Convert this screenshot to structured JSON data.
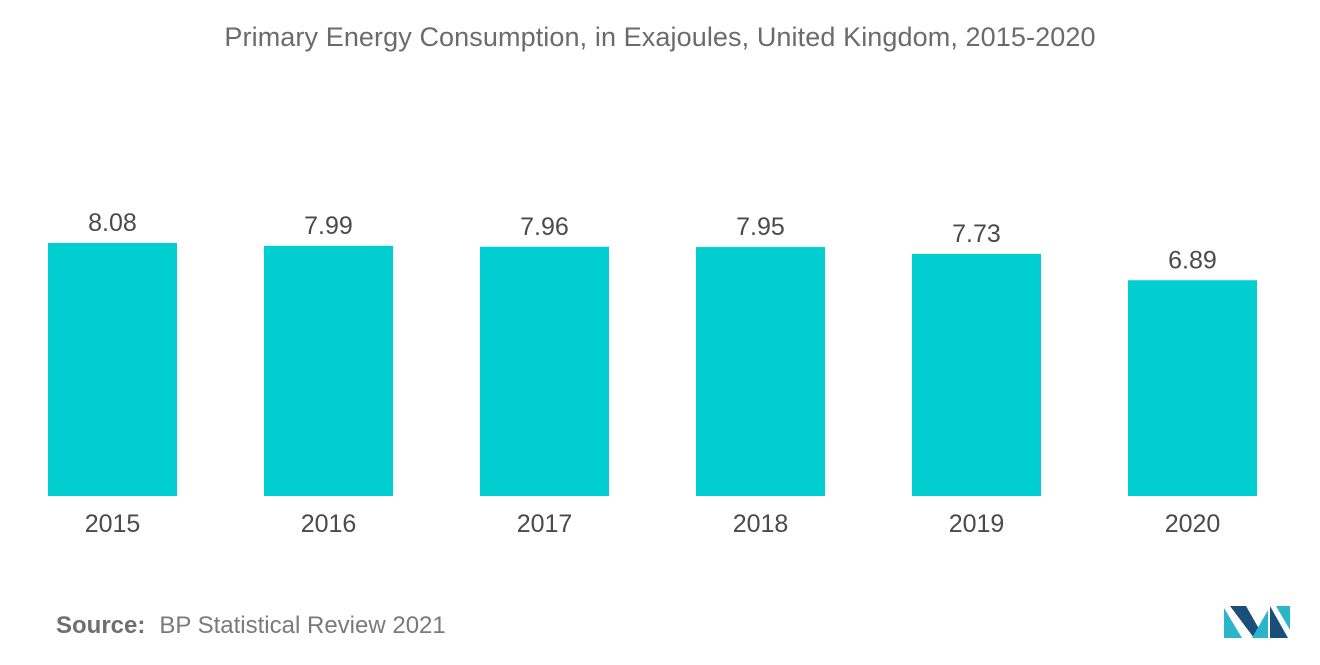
{
  "chart_data": {
    "type": "bar",
    "title": "Primary Energy Consumption, in Exajoules, United Kingdom, 2015-2020",
    "categories": [
      "2015",
      "2016",
      "2017",
      "2018",
      "2019",
      "2020"
    ],
    "values": [
      8.08,
      7.99,
      7.96,
      7.95,
      7.73,
      6.89
    ],
    "value_labels": [
      "8.08",
      "7.99",
      "7.96",
      "7.95",
      "7.73",
      "6.89"
    ],
    "ylim": [
      0,
      8.08
    ],
    "grid": false,
    "legend": "none",
    "bar_color": "#00CED1"
  },
  "source": {
    "label": "Source:",
    "text": "BP Statistical Review 2021"
  },
  "logo": {
    "icon": "mordor-intelligence-logo-icon",
    "colors": [
      "#1a4f7a",
      "#2bb5c8"
    ]
  }
}
